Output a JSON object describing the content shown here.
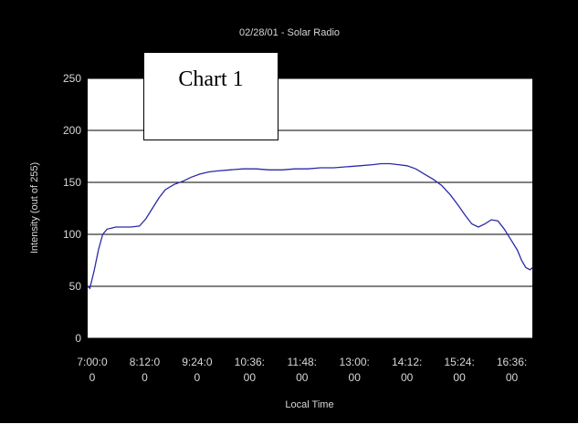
{
  "chart_data": {
    "type": "line",
    "title": "02/28/01 - Solar Radio",
    "xlabel": "Local Time",
    "ylabel": "Intensity (out of 255)",
    "ylim": [
      0,
      250
    ],
    "yticks": [
      0,
      50,
      100,
      150,
      200,
      250
    ],
    "grid": true,
    "legend": "none",
    "annotation": "Chart 1",
    "x_tick_labels": [
      [
        "7:00:0",
        "0"
      ],
      [
        "8:12:0",
        "0"
      ],
      [
        "9:24:0",
        "0"
      ],
      [
        "10:36:",
        "00"
      ],
      [
        "11:48:",
        "00"
      ],
      [
        "13:00:",
        "00"
      ],
      [
        "14:12:",
        "00"
      ],
      [
        "15:24:",
        "00"
      ],
      [
        "16:36:",
        "00"
      ]
    ],
    "x_range_hours": [
      7.0,
      17.3
    ],
    "series": [
      {
        "x": [
          7.0,
          7.05,
          7.15,
          7.25,
          7.35,
          7.45,
          7.55,
          7.65,
          7.8,
          8.0,
          8.2,
          8.35,
          8.5,
          8.65,
          8.8,
          9.0,
          9.2,
          9.4,
          9.6,
          9.8,
          10.0,
          10.3,
          10.6,
          10.9,
          11.2,
          11.5,
          11.8,
          12.1,
          12.4,
          12.7,
          13.0,
          13.3,
          13.6,
          13.8,
          14.0,
          14.2,
          14.4,
          14.6,
          14.8,
          15.0,
          15.2,
          15.4,
          15.6,
          15.75,
          15.9,
          16.05,
          16.2,
          16.35,
          16.5,
          16.65,
          16.8,
          16.95,
          17.05,
          17.15,
          17.25,
          17.3
        ],
        "y": [
          50,
          48,
          65,
          85,
          100,
          105,
          106,
          107,
          107,
          107,
          108,
          115,
          125,
          135,
          143,
          148,
          151,
          155,
          158,
          160,
          161,
          162,
          163,
          163,
          162,
          162,
          163,
          163,
          164,
          164,
          165,
          166,
          167,
          168,
          168,
          167,
          166,
          163,
          158,
          153,
          147,
          138,
          127,
          118,
          110,
          107,
          110,
          114,
          113,
          105,
          95,
          85,
          75,
          68,
          66,
          68
        ],
        "color": "#2a2aa8"
      }
    ]
  },
  "colors": {
    "background": "#000000",
    "plot_area": "#ffffff",
    "gridline": "#000000",
    "line": "#2a2aa8",
    "text": "#d8d8d8"
  }
}
